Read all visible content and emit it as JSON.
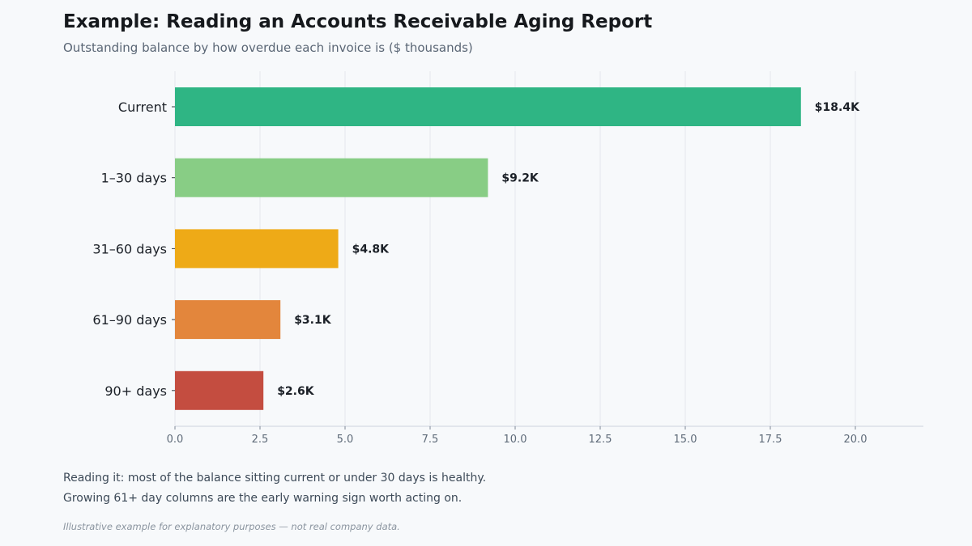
{
  "header": {
    "title": "Example: Reading an Accounts Receivable Aging Report",
    "subtitle": "Outstanding balance by how overdue each invoice is ($ thousands)"
  },
  "notes": {
    "line1": "Reading it: most of the balance sitting current or under 30 days is healthy.",
    "line2": "Growing 61+ day columns are the early warning sign worth acting on."
  },
  "disclaimer": "Illustrative example for explanatory purposes — not real company data.",
  "chart_data": {
    "type": "bar",
    "orientation": "horizontal",
    "categories": [
      "Current",
      "1–30 days",
      "31–60 days",
      "61–90 days",
      "90+ days"
    ],
    "values": [
      18.4,
      9.2,
      4.8,
      3.1,
      2.6
    ],
    "data_labels": [
      "$18.4K",
      "$9.2K",
      "$4.8K",
      "$3.1K",
      "$2.6K"
    ],
    "colors": [
      "#2fb584",
      "#88cd85",
      "#eeaa17",
      "#e3863c",
      "#c44d40"
    ],
    "xticks": [
      "0.0",
      "2.5",
      "5.0",
      "7.5",
      "10.0",
      "12.5",
      "15.0",
      "17.5",
      "20.0"
    ],
    "xtick_values": [
      0,
      2.5,
      5,
      7.5,
      10,
      12.5,
      15,
      17.5,
      20
    ],
    "xlim": [
      0,
      22
    ],
    "grid": "vertical"
  }
}
